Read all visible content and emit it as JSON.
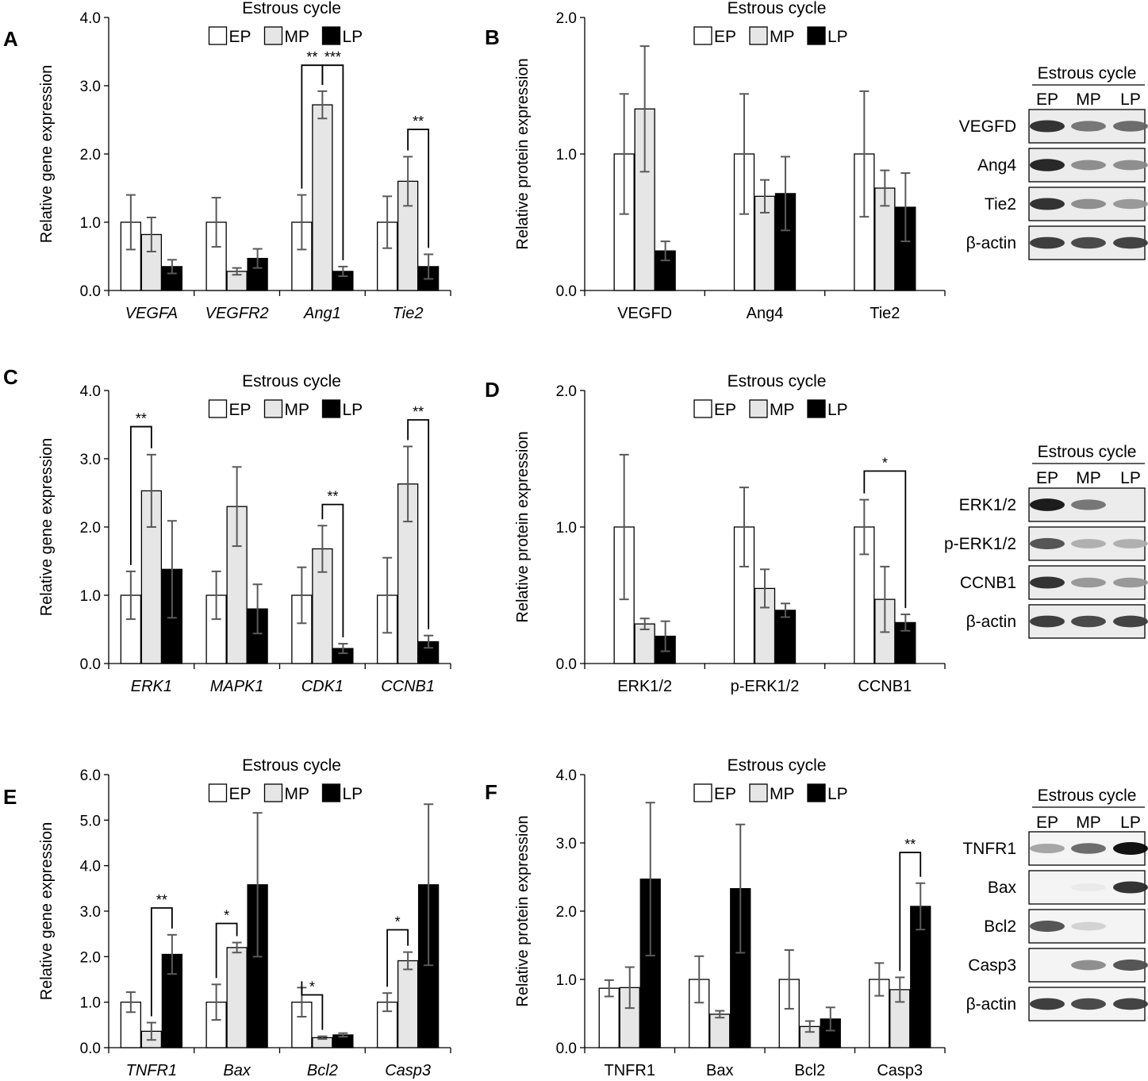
{
  "colors": {
    "EP": "#ffffff",
    "MP": "#e6e6e6",
    "LP": "#000000",
    "error": "#595959",
    "axis": "#000000"
  },
  "blots": {
    "B": {
      "header": "Estrous cycle",
      "lanes": [
        "EP",
        "MP",
        "LP"
      ],
      "rows": [
        "VEGFD",
        "Ang4",
        "Tie2",
        "β-actin"
      ]
    },
    "D": {
      "header": "Estrous cycle",
      "lanes": [
        "EP",
        "MP",
        "LP"
      ],
      "rows": [
        "ERK1/2",
        "p-ERK1/2",
        "CCNB1",
        "β-actin"
      ]
    },
    "F": {
      "header": "Estrous cycle",
      "lanes": [
        "EP",
        "MP",
        "LP"
      ],
      "rows": [
        "TNFR1",
        "Bax",
        "Bcl2",
        "Casp3",
        "β-actin"
      ]
    }
  },
  "chart_data": [
    {
      "panel": "A",
      "type": "bar",
      "title": "Estrous cycle",
      "ylabel": "Relative gene expression",
      "ylim": [
        0,
        4
      ],
      "yticks": [
        "0.0",
        "1.0",
        "2.0",
        "3.0",
        "4.0"
      ],
      "legend_position": "top-center",
      "italic_categories": true,
      "categories": [
        "VEGFA",
        "VEGFR2",
        "Ang1",
        "Tie2"
      ],
      "series": [
        {
          "name": "EP",
          "values": [
            1.0,
            1.0,
            1.0,
            1.0
          ],
          "err": [
            0.4,
            0.36,
            0.4,
            0.38
          ]
        },
        {
          "name": "MP",
          "values": [
            0.82,
            0.28,
            2.72,
            1.6
          ],
          "err": [
            0.25,
            0.05,
            0.2,
            0.36
          ]
        },
        {
          "name": "LP",
          "values": [
            0.35,
            0.47,
            0.28,
            0.35
          ],
          "err": [
            0.1,
            0.14,
            0.07,
            0.18
          ]
        }
      ],
      "significance": [
        {
          "cat": 2,
          "from": 0,
          "to": 1,
          "label": "**",
          "y": 3.3
        },
        {
          "cat": 2,
          "from": 1,
          "to": 2,
          "label": "***",
          "y": 3.3
        },
        {
          "cat": 3,
          "from": 1,
          "to": 2,
          "label": "**",
          "y": 2.36
        }
      ]
    },
    {
      "panel": "B",
      "type": "bar",
      "title": "Estrous cycle",
      "ylabel": "Relative protein expression",
      "ylim": [
        0,
        2
      ],
      "yticks": [
        "0.0",
        "1.0",
        "2.0"
      ],
      "legend_position": "top-center",
      "italic_categories": false,
      "categories": [
        "VEGFD",
        "Ang4",
        "Tie2"
      ],
      "series": [
        {
          "name": "EP",
          "values": [
            1.0,
            1.0,
            1.0
          ],
          "err": [
            0.44,
            0.44,
            0.46
          ]
        },
        {
          "name": "MP",
          "values": [
            1.33,
            0.69,
            0.75
          ],
          "err": [
            0.46,
            0.12,
            0.13
          ]
        },
        {
          "name": "LP",
          "values": [
            0.29,
            0.71,
            0.61
          ],
          "err": [
            0.07,
            0.27,
            0.25
          ]
        }
      ],
      "significance": []
    },
    {
      "panel": "C",
      "type": "bar",
      "title": "Estrous cycle",
      "ylabel": "Relative gene expression",
      "ylim": [
        0,
        4
      ],
      "yticks": [
        "0.0",
        "1.0",
        "2.0",
        "3.0",
        "4.0"
      ],
      "legend_position": "top-center",
      "italic_categories": true,
      "categories": [
        "ERK1",
        "MAPK1",
        "CDK1",
        "CCNB1"
      ],
      "series": [
        {
          "name": "EP",
          "values": [
            1.0,
            1.0,
            1.0,
            1.0
          ],
          "err": [
            0.35,
            0.35,
            0.41,
            0.55
          ]
        },
        {
          "name": "MP",
          "values": [
            2.53,
            2.3,
            1.68,
            2.63
          ],
          "err": [
            0.53,
            0.58,
            0.34,
            0.55
          ]
        },
        {
          "name": "LP",
          "values": [
            1.38,
            0.8,
            0.22,
            0.32
          ],
          "err": [
            0.71,
            0.36,
            0.07,
            0.09
          ]
        }
      ],
      "significance": [
        {
          "cat": 0,
          "from": 0,
          "to": 1,
          "label": "**",
          "y": 3.47
        },
        {
          "cat": 2,
          "from": 1,
          "to": 2,
          "label": "**",
          "y": 2.33
        },
        {
          "cat": 3,
          "from": 1,
          "to": 2,
          "label": "**",
          "y": 3.57
        }
      ]
    },
    {
      "panel": "D",
      "type": "bar",
      "title": "Estrous cycle",
      "ylabel": "Relative protein expression",
      "ylim": [
        0,
        2
      ],
      "yticks": [
        "0.0",
        "1.0",
        "2.0"
      ],
      "legend_position": "top-center",
      "italic_categories": false,
      "categories": [
        "ERK1/2",
        "p-ERK1/2",
        "CCNB1"
      ],
      "series": [
        {
          "name": "EP",
          "values": [
            1.0,
            1.0,
            1.0
          ],
          "err": [
            0.53,
            0.29,
            0.2
          ]
        },
        {
          "name": "MP",
          "values": [
            0.29,
            0.55,
            0.47
          ],
          "err": [
            0.04,
            0.14,
            0.24
          ]
        },
        {
          "name": "LP",
          "values": [
            0.2,
            0.39,
            0.3
          ],
          "err": [
            0.11,
            0.05,
            0.06
          ]
        }
      ],
      "significance": [
        {
          "cat": 2,
          "from": 0,
          "to": 2,
          "label": "*",
          "y": 1.41
        }
      ]
    },
    {
      "panel": "E",
      "type": "bar",
      "title": "Estrous cycle",
      "ylabel": "Relative gene expression",
      "ylim": [
        0,
        6
      ],
      "yticks": [
        "0.0",
        "1.0",
        "2.0",
        "3.0",
        "4.0",
        "5.0",
        "6.0"
      ],
      "legend_position": "top-center",
      "italic_categories": true,
      "categories": [
        "TNFR1",
        "Bax",
        "Bcl2",
        "Casp3"
      ],
      "series": [
        {
          "name": "EP",
          "values": [
            1.0,
            1.0,
            1.0,
            1.0
          ],
          "err": [
            0.22,
            0.39,
            0.32,
            0.2
          ]
        },
        {
          "name": "MP",
          "values": [
            0.36,
            2.2,
            0.22,
            1.91
          ],
          "err": [
            0.19,
            0.11,
            0.03,
            0.19
          ]
        },
        {
          "name": "LP",
          "values": [
            2.05,
            3.58,
            0.28,
            3.58
          ],
          "err": [
            0.43,
            1.58,
            0.04,
            1.77
          ]
        }
      ],
      "significance": [
        {
          "cat": 0,
          "from": 1,
          "to": 2,
          "label": "**",
          "y": 3.07
        },
        {
          "cat": 1,
          "from": 0,
          "to": 1,
          "label": "*",
          "y": 2.73
        },
        {
          "cat": 2,
          "from": 0,
          "to": 1,
          "label": "*",
          "y": 1.16
        },
        {
          "cat": 3,
          "from": 0,
          "to": 1,
          "label": "*",
          "y": 2.59
        }
      ]
    },
    {
      "panel": "F",
      "type": "bar",
      "title": "Estrous cycle",
      "ylabel": "Relative protein expression",
      "ylim": [
        0,
        4
      ],
      "yticks": [
        "0.0",
        "1.0",
        "2.0",
        "3.0",
        "4.0"
      ],
      "legend_position": "top-center",
      "italic_categories": false,
      "categories": [
        "TNFR1",
        "Bax",
        "Bcl2",
        "Casp3"
      ],
      "series": [
        {
          "name": "EP",
          "values": [
            0.87,
            1.0,
            1.0,
            1.0
          ],
          "err": [
            0.12,
            0.34,
            0.43,
            0.24
          ]
        },
        {
          "name": "MP",
          "values": [
            0.88,
            0.49,
            0.31,
            0.85
          ],
          "err": [
            0.3,
            0.05,
            0.08,
            0.18
          ]
        },
        {
          "name": "LP",
          "values": [
            2.47,
            2.33,
            0.42,
            2.07
          ],
          "err": [
            1.12,
            0.94,
            0.17,
            0.34
          ]
        }
      ],
      "significance": [
        {
          "cat": 3,
          "from": 1,
          "to": 2,
          "label": "**",
          "y": 2.86
        }
      ]
    }
  ]
}
